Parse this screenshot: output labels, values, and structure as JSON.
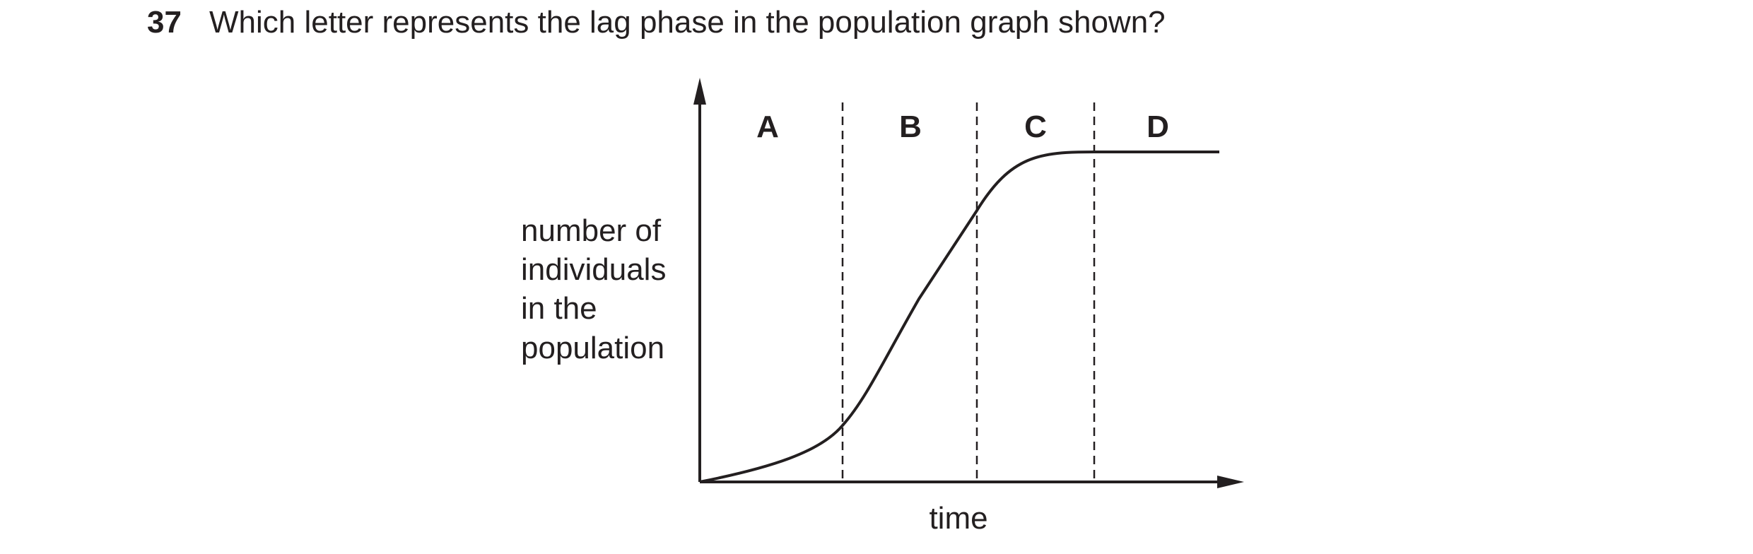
{
  "question": {
    "number": "37",
    "text": "Which letter represents the lag phase in the population graph shown?"
  },
  "graph": {
    "phase_labels": [
      "A",
      "B",
      "C",
      "D"
    ],
    "y_axis_label_lines": [
      "number of",
      "individuals",
      "in the",
      "population"
    ],
    "x_axis_label": "time",
    "line_color": "#231f20"
  }
}
